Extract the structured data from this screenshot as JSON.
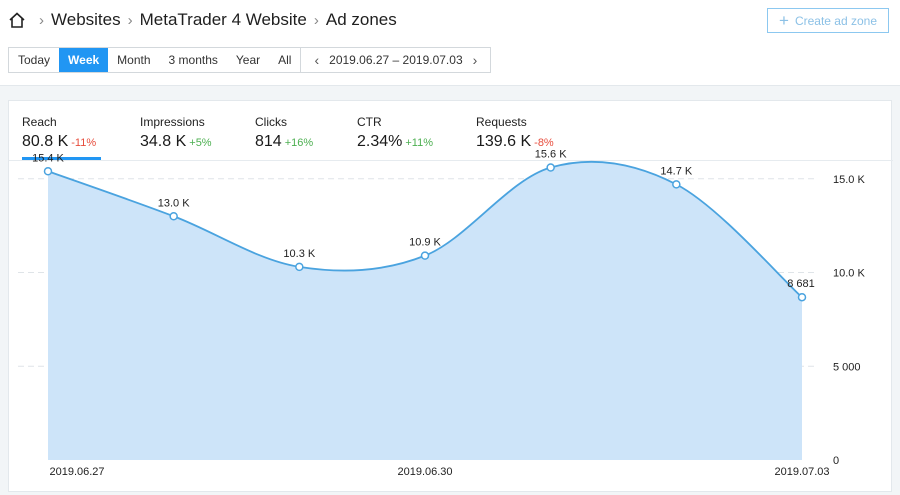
{
  "breadcrumb": {
    "items": [
      "Websites",
      "MetaTrader 4 Website",
      "Ad zones"
    ]
  },
  "toolbar": {
    "create_label": "Create ad zone"
  },
  "period": {
    "options": [
      "Today",
      "Week",
      "Month",
      "3 months",
      "Year",
      "All"
    ],
    "active": "Week",
    "range": "2019.06.27 – 2019.07.03"
  },
  "metrics": [
    {
      "label": "Reach",
      "value": "80.8 K",
      "delta": "-11%",
      "trend": "negative",
      "selected": true
    },
    {
      "label": "Impressions",
      "value": "34.8 K",
      "delta": "+5%",
      "trend": "positive"
    },
    {
      "label": "Clicks",
      "value": "814",
      "delta": "+16%",
      "trend": "positive"
    },
    {
      "label": "CTR",
      "value": "2.34%",
      "delta": "+11%",
      "trend": "positive"
    },
    {
      "label": "Requests",
      "value": "139.6 K",
      "delta": "-8%",
      "trend": "negative"
    }
  ],
  "colors": {
    "accent": "#2196f3",
    "area_fill": "#cde4f9",
    "line": "#4aa3df",
    "negative": "#e74c3c",
    "positive": "#4caf50"
  },
  "chart_data": {
    "type": "area",
    "x": [
      "2019.06.27",
      "2019.06.28",
      "2019.06.29",
      "2019.06.30",
      "2019.07.01",
      "2019.07.02",
      "2019.07.03"
    ],
    "series": [
      {
        "values": [
          15400,
          13000,
          10300,
          10900,
          15600,
          14700,
          8681
        ]
      }
    ],
    "data_labels": [
      "15.4 K",
      "13.0 K",
      "10.3 K",
      "10.9 K",
      "15.6 K",
      "14.7 K",
      "8 681"
    ],
    "xtick_labels": [
      "2019.06.27",
      "",
      "",
      "2019.06.30",
      "",
      "",
      "2019.07.03"
    ],
    "yticks": [
      0,
      5000,
      10000,
      15000
    ],
    "ytick_labels": [
      "0",
      "5 000",
      "10.0 K",
      "15.0 K"
    ],
    "ylim": [
      0,
      16000
    ],
    "grid": true,
    "y_axis_side": "right"
  }
}
